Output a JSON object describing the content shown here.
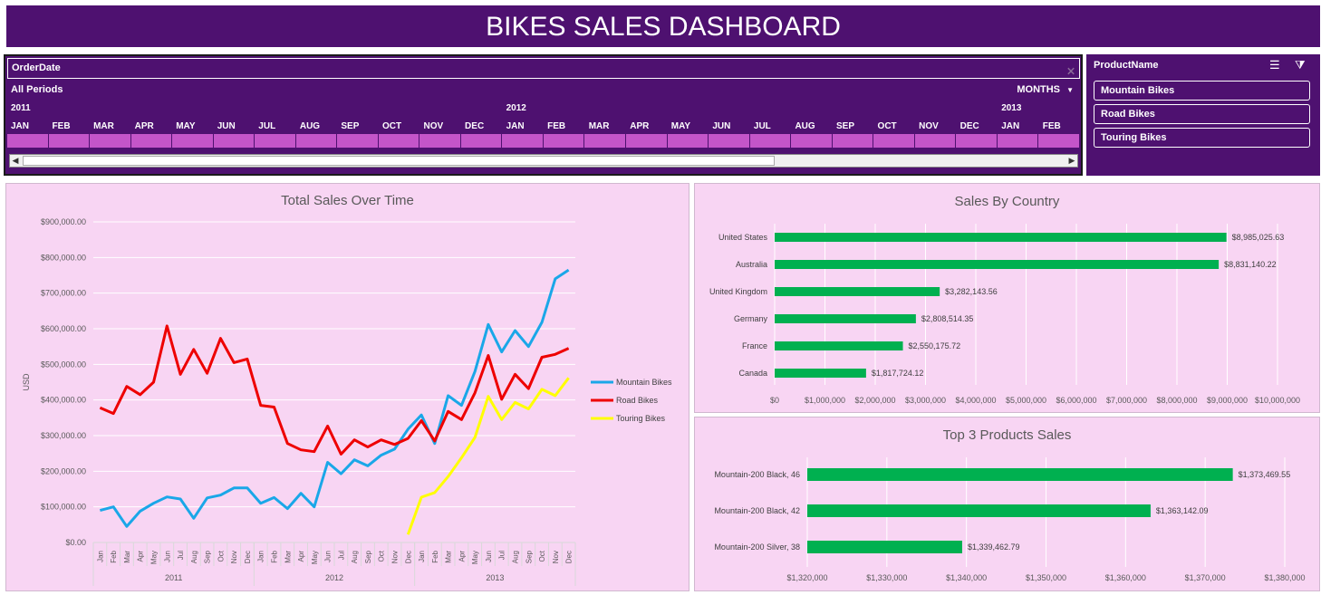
{
  "dashboard_title": "BIKES SALES DASHBOARD",
  "timeline": {
    "header": "OrderDate",
    "period_label": "All Periods",
    "level_label": "MONTHS",
    "years": [
      "2011",
      "2012",
      "2013"
    ],
    "months": [
      "JAN",
      "FEB",
      "MAR",
      "APR",
      "MAY",
      "JUN",
      "JUL",
      "AUG",
      "SEP",
      "OCT",
      "NOV",
      "DEC",
      "JAN",
      "FEB",
      "MAR",
      "APR",
      "MAY",
      "JUN",
      "JUL",
      "AUG",
      "SEP",
      "OCT",
      "NOV",
      "DEC",
      "JAN",
      "FEB"
    ]
  },
  "slicer": {
    "title": "ProductName",
    "items": [
      "Mountain Bikes",
      "Road Bikes",
      "Touring Bikes"
    ]
  },
  "colors": {
    "brand_purple": "#4e1170",
    "panel_pink": "#f8d5f3",
    "bar_green": "#00b050",
    "mountain": "#1aa7e8",
    "road": "#ee0000",
    "touring": "#ffff00"
  },
  "chart_data": [
    {
      "type": "line",
      "title": "Total Sales Over Time",
      "ylabel": "USD",
      "ylim": [
        0,
        900000
      ],
      "yticks": [
        "$0.00",
        "$100,000.00",
        "$200,000.00",
        "$300,000.00",
        "$400,000.00",
        "$500,000.00",
        "$600,000.00",
        "$700,000.00",
        "$800,000.00",
        "$900,000.00"
      ],
      "x_months": [
        "Jan",
        "Feb",
        "Mar",
        "Apr",
        "May",
        "Jun",
        "Jul",
        "Aug",
        "Sep",
        "Oct",
        "Nov",
        "Dec",
        "Jan",
        "Feb",
        "Mar",
        "Apr",
        "May",
        "Jun",
        "Jul",
        "Aug",
        "Sep",
        "Oct",
        "Nov",
        "Dec",
        "Jan",
        "Feb",
        "Mar",
        "Apr",
        "May",
        "Jun",
        "Jul",
        "Aug",
        "Sep",
        "Oct",
        "Nov",
        "Dec"
      ],
      "x_groups": [
        "2011",
        "2012",
        "2013"
      ],
      "legend_position": "right",
      "series": [
        {
          "name": "Mountain Bikes",
          "color": "#1aa7e8",
          "start": 0,
          "values": [
            90000,
            100000,
            45000,
            88000,
            110000,
            128000,
            122000,
            68000,
            125000,
            133000,
            153000,
            153000,
            110000,
            126000,
            95000,
            138000,
            100000,
            225000,
            193000,
            232000,
            215000,
            245000,
            262000,
            318000,
            358000,
            278000,
            412000,
            385000,
            480000,
            612000,
            535000,
            595000,
            550000,
            618000,
            740000,
            765000
          ]
        },
        {
          "name": "Road Bikes",
          "color": "#ee0000",
          "start": 0,
          "values": [
            378000,
            362000,
            438000,
            415000,
            450000,
            608000,
            472000,
            542000,
            475000,
            573000,
            505000,
            515000,
            385000,
            380000,
            278000,
            260000,
            255000,
            327000,
            248000,
            288000,
            268000,
            288000,
            275000,
            292000,
            342000,
            285000,
            368000,
            345000,
            420000,
            525000,
            402000,
            472000,
            432000,
            520000,
            528000,
            545000
          ]
        },
        {
          "name": "Touring Bikes",
          "color": "#ffff00",
          "start": 23,
          "values": [
            22000,
            127000,
            140000,
            185000,
            238000,
            295000,
            410000,
            345000,
            393000,
            375000,
            430000,
            412000,
            462000
          ]
        }
      ]
    },
    {
      "type": "bar",
      "orientation": "horizontal",
      "title": "Sales By Country",
      "categories": [
        "United States",
        "Australia",
        "United Kingdom",
        "Germany",
        "France",
        "Canada"
      ],
      "values": [
        8985025.63,
        8831140.22,
        3282143.56,
        2808514.35,
        2550175.72,
        1817724.12
      ],
      "labels": [
        "$8,985,025.63",
        "$8,831,140.22",
        "$3,282,143.56",
        "$2,808,514.35",
        "$2,550,175.72",
        "$1,817,724.12"
      ],
      "xlim": [
        0,
        10000000
      ],
      "xticks": [
        "$0",
        "$1,000,000",
        "$2,000,000",
        "$3,000,000",
        "$4,000,000",
        "$5,000,000",
        "$6,000,000",
        "$7,000,000",
        "$8,000,000",
        "$9,000,000",
        "$10,000,000"
      ]
    },
    {
      "type": "bar",
      "orientation": "horizontal",
      "title": "Top 3 Products Sales",
      "categories": [
        "Mountain-200 Black, 46",
        "Mountain-200 Black, 42",
        "Mountain-200 Silver, 38"
      ],
      "values": [
        1373469.55,
        1363142.09,
        1339462.79
      ],
      "labels": [
        "$1,373,469.55",
        "$1,363,142.09",
        "$1,339,462.79"
      ],
      "xlim": [
        1320000,
        1380000
      ],
      "xticks": [
        "$1,320,000",
        "$1,330,000",
        "$1,340,000",
        "$1,350,000",
        "$1,360,000",
        "$1,370,000",
        "$1,380,000"
      ]
    }
  ]
}
